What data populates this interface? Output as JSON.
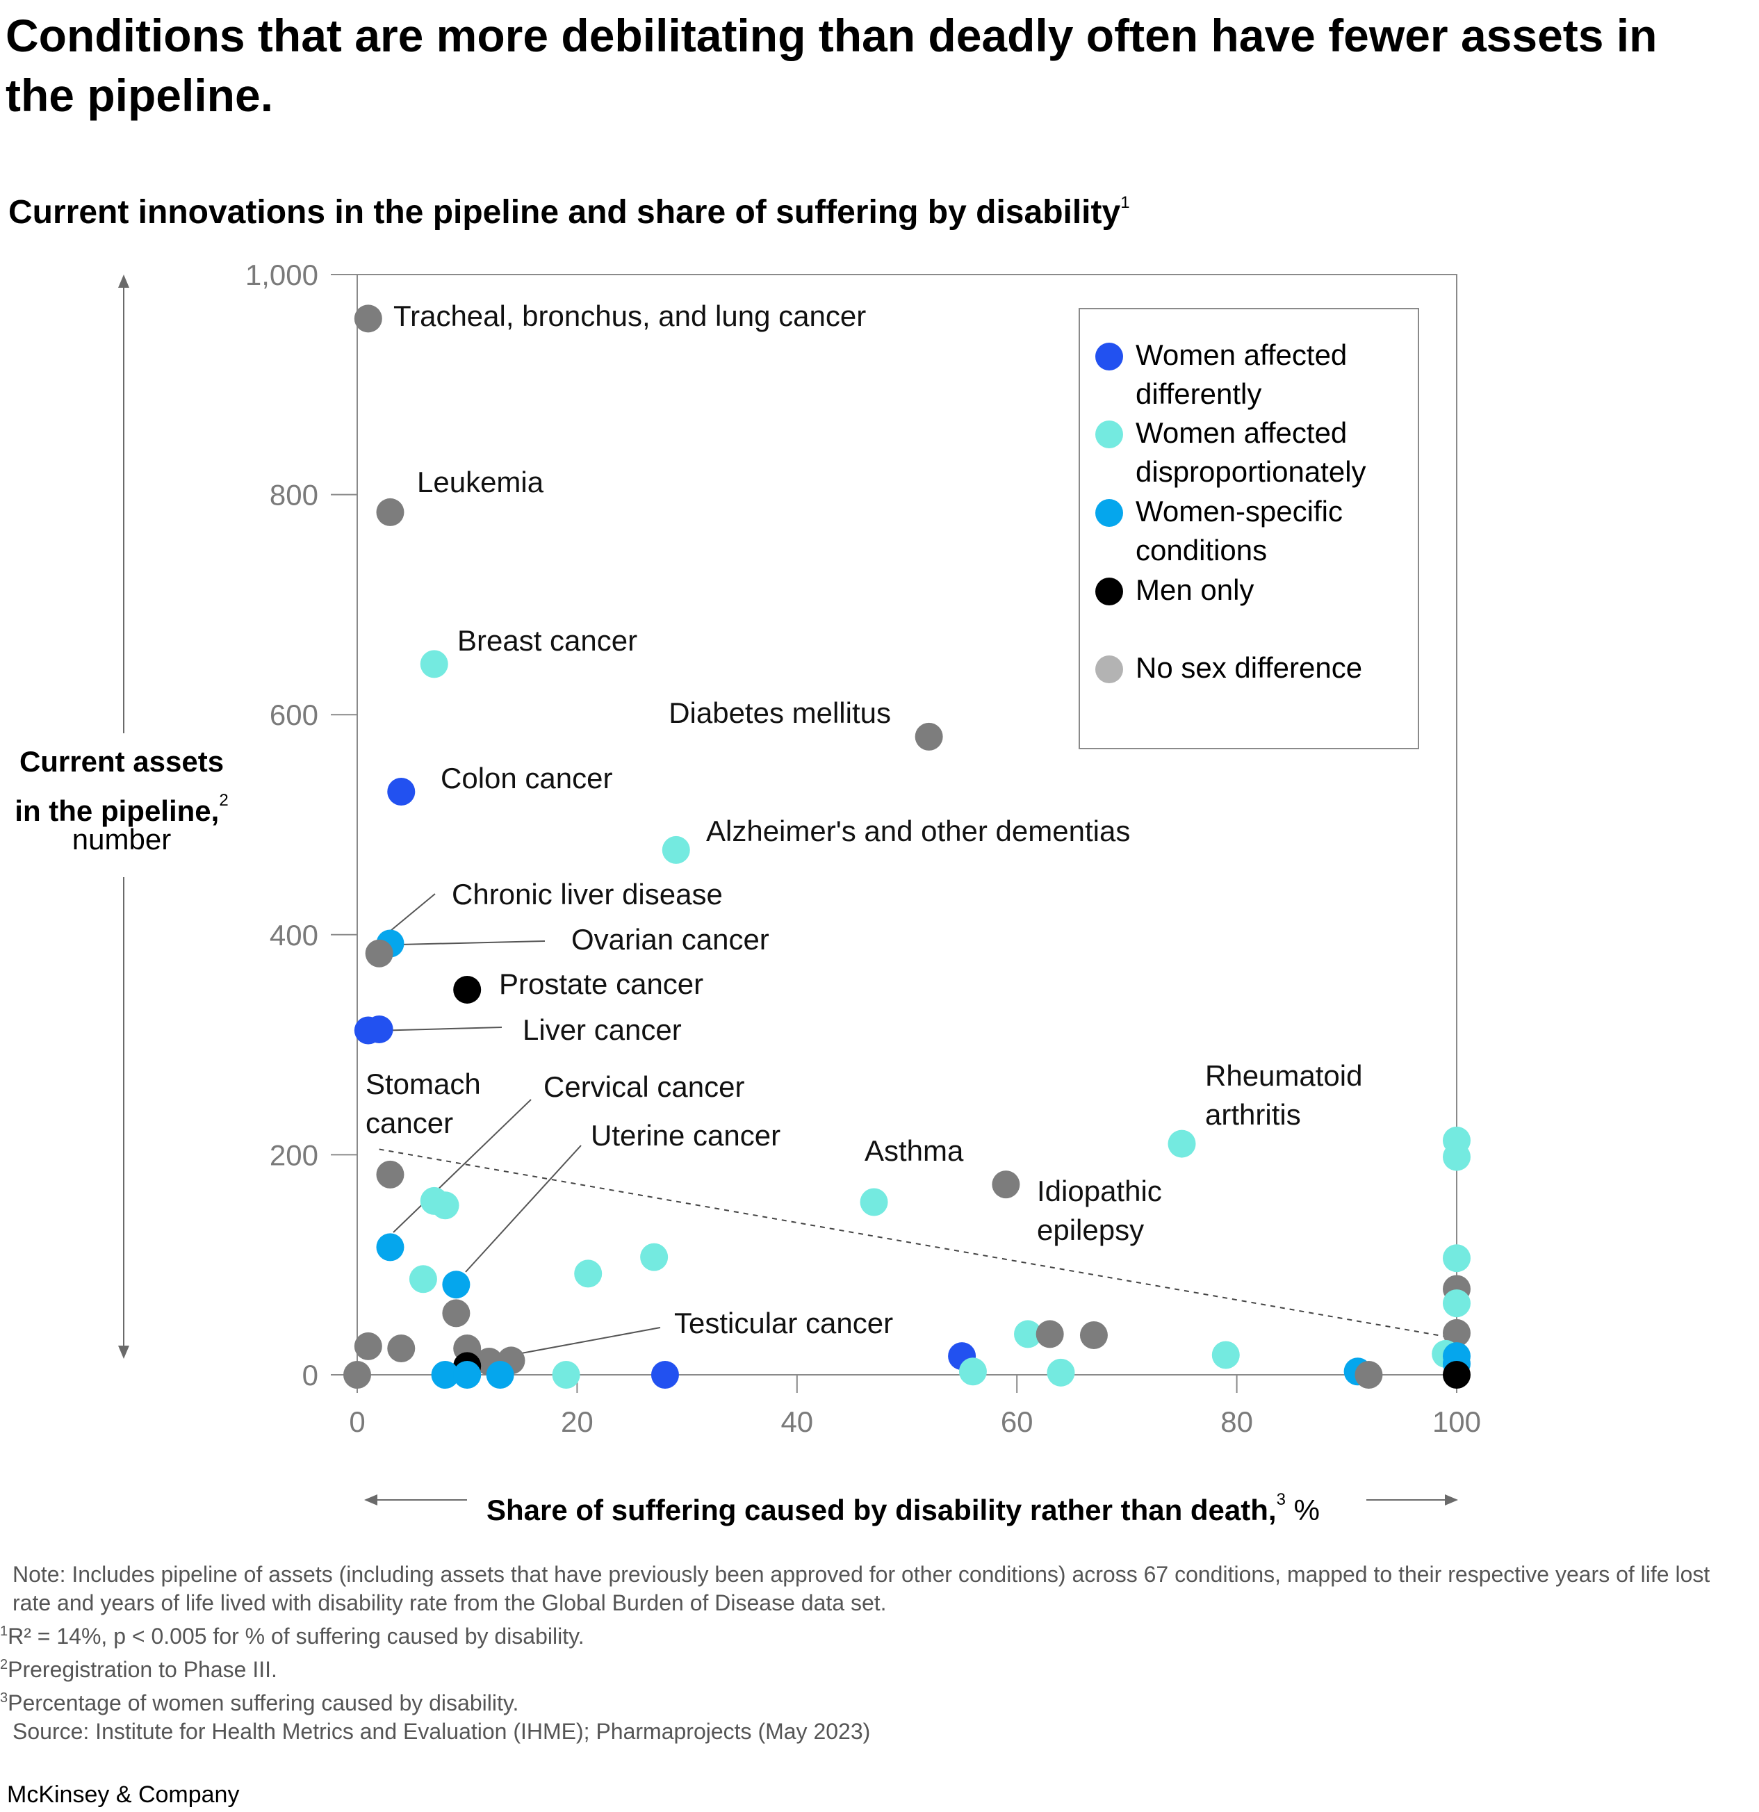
{
  "title": "Conditions that are more debilitating than deadly often have fewer assets in the pipeline.",
  "subtitle": {
    "text": "Current innovations in the pipeline and share of suffering by disability",
    "sup": "1"
  },
  "footer": {
    "note": "Note: Includes pipeline of assets (including assets that have previously been approved for other conditions) across 67 conditions, mapped to their respective years of life lost rate and years of life lived with disability rate from the Global Burden of Disease data set.",
    "footnote1": {
      "sup": "1",
      "text": "R² = 14%, p < 0.005 for % of suffering caused by disability."
    },
    "footnote2": {
      "sup": "2",
      "text": "Preregistration to Phase III."
    },
    "footnote3": {
      "sup": "3",
      "text": "Percentage of women suffering caused by disability."
    },
    "source": "Source: Institute for Health Metrics and Evaluation (IHME); Pharmaprojects (May 2023)"
  },
  "brand": "McKinsey & Company",
  "chart_data": {
    "type": "scatter",
    "xlabel": "Share of suffering caused by disability rather than death,",
    "xlabel_sup": "3",
    "xlabel_unit": "%",
    "ylabel_line1": "Current assets",
    "ylabel_line2": "in the pipeline,",
    "ylabel_sup": "2",
    "ylabel_unit": "number",
    "xlim": [
      0,
      100
    ],
    "ylim": [
      0,
      1000
    ],
    "x_ticks": [
      "0",
      "20",
      "40",
      "60",
      "80",
      "100"
    ],
    "y_ticks": [
      "0",
      "200",
      "400",
      "600",
      "800",
      "1,000"
    ],
    "legend_position": "top-right",
    "categories": {
      "diff": {
        "label": "Women affected differently",
        "color": "#2251f0"
      },
      "disp": {
        "label": "Women affected disproportionately",
        "color": "#74eae0"
      },
      "spec": {
        "label": "Women-specific conditions",
        "color": "#05a6ed"
      },
      "men": {
        "label": "Men only",
        "color": "#000000"
      },
      "none": {
        "label": "No sex difference",
        "color": "#b3b3b3"
      }
    },
    "points": [
      {
        "x": 1,
        "y": 960,
        "cat": "none",
        "label": "Tracheal, bronchus, and lung cancer"
      },
      {
        "x": 3,
        "y": 784,
        "cat": "none",
        "label": "Leukemia"
      },
      {
        "x": 7,
        "y": 646,
        "cat": "disp",
        "label": "Breast cancer"
      },
      {
        "x": 52,
        "y": 580,
        "cat": "none",
        "label": "Diabetes mellitus"
      },
      {
        "x": 4,
        "y": 530,
        "cat": "diff",
        "label": "Colon cancer"
      },
      {
        "x": 29,
        "y": 477,
        "cat": "disp",
        "label": "Alzheimer's and other dementias"
      },
      {
        "x": 3,
        "y": 392,
        "cat": "spec",
        "label": "Chronic liver disease"
      },
      {
        "x": 2,
        "y": 383,
        "cat": "none",
        "label": "Ovarian cancer"
      },
      {
        "x": 10,
        "y": 350,
        "cat": "men",
        "label": "Prostate cancer"
      },
      {
        "x": 2,
        "y": 314,
        "cat": "diff",
        "label": "Liver cancer"
      },
      {
        "x": 1,
        "y": 313,
        "cat": "diff",
        "label": ""
      },
      {
        "x": 3,
        "y": 182,
        "cat": "none",
        "label": "Stomach cancer"
      },
      {
        "x": 3,
        "y": 116,
        "cat": "spec",
        "label": "Cervical cancer"
      },
      {
        "x": 9,
        "y": 82,
        "cat": "spec",
        "label": "Uterine cancer"
      },
      {
        "x": 75,
        "y": 210,
        "cat": "disp",
        "label": "Rheumatoid arthritis"
      },
      {
        "x": 47,
        "y": 157,
        "cat": "disp",
        "label": "Asthma"
      },
      {
        "x": 59,
        "y": 173,
        "cat": "none",
        "label": "Idiopathic epilepsy"
      },
      {
        "x": 14,
        "y": 13,
        "cat": "none",
        "label": "Testicular cancer"
      },
      {
        "x": 7,
        "y": 158,
        "cat": "disp",
        "label": ""
      },
      {
        "x": 8,
        "y": 154,
        "cat": "disp",
        "label": ""
      },
      {
        "x": 6,
        "y": 87,
        "cat": "disp",
        "label": ""
      },
      {
        "x": 21,
        "y": 92,
        "cat": "disp",
        "label": ""
      },
      {
        "x": 27,
        "y": 107,
        "cat": "disp",
        "label": ""
      },
      {
        "x": 9,
        "y": 56,
        "cat": "none",
        "label": ""
      },
      {
        "x": 1,
        "y": 26,
        "cat": "none",
        "label": ""
      },
      {
        "x": 4,
        "y": 24,
        "cat": "none",
        "label": ""
      },
      {
        "x": 10,
        "y": 24,
        "cat": "none",
        "label": ""
      },
      {
        "x": 12,
        "y": 12,
        "cat": "none",
        "label": ""
      },
      {
        "x": 10,
        "y": 8,
        "cat": "men",
        "label": ""
      },
      {
        "x": 0,
        "y": 0,
        "cat": "none",
        "label": ""
      },
      {
        "x": 8,
        "y": 0,
        "cat": "spec",
        "label": ""
      },
      {
        "x": 10,
        "y": 0,
        "cat": "spec",
        "label": ""
      },
      {
        "x": 13,
        "y": 0,
        "cat": "spec",
        "label": ""
      },
      {
        "x": 19,
        "y": 0,
        "cat": "disp",
        "label": ""
      },
      {
        "x": 28,
        "y": 0,
        "cat": "diff",
        "label": ""
      },
      {
        "x": 55,
        "y": 17,
        "cat": "diff",
        "label": ""
      },
      {
        "x": 56,
        "y": 3,
        "cat": "disp",
        "label": ""
      },
      {
        "x": 61,
        "y": 37,
        "cat": "disp",
        "label": ""
      },
      {
        "x": 63,
        "y": 37,
        "cat": "none",
        "label": ""
      },
      {
        "x": 64,
        "y": 2,
        "cat": "disp",
        "label": ""
      },
      {
        "x": 67,
        "y": 36,
        "cat": "none",
        "label": ""
      },
      {
        "x": 79,
        "y": 18,
        "cat": "disp",
        "label": ""
      },
      {
        "x": 91,
        "y": 3,
        "cat": "spec",
        "label": ""
      },
      {
        "x": 92,
        "y": 0,
        "cat": "none",
        "label": ""
      },
      {
        "x": 100,
        "y": 213,
        "cat": "disp",
        "label": ""
      },
      {
        "x": 100,
        "y": 198,
        "cat": "disp",
        "label": ""
      },
      {
        "x": 100,
        "y": 106,
        "cat": "disp",
        "label": ""
      },
      {
        "x": 100,
        "y": 78,
        "cat": "none",
        "label": ""
      },
      {
        "x": 100,
        "y": 65,
        "cat": "disp",
        "label": ""
      },
      {
        "x": 100,
        "y": 38,
        "cat": "none",
        "label": ""
      },
      {
        "x": 99,
        "y": 19,
        "cat": "disp",
        "label": ""
      },
      {
        "x": 100,
        "y": 17,
        "cat": "spec",
        "label": ""
      },
      {
        "x": 100,
        "y": 10,
        "cat": "spec",
        "label": ""
      },
      {
        "x": 100,
        "y": 0,
        "cat": "men",
        "label": ""
      }
    ],
    "trendline": {
      "x": [
        2,
        100
      ],
      "y": [
        205,
        33
      ]
    }
  }
}
